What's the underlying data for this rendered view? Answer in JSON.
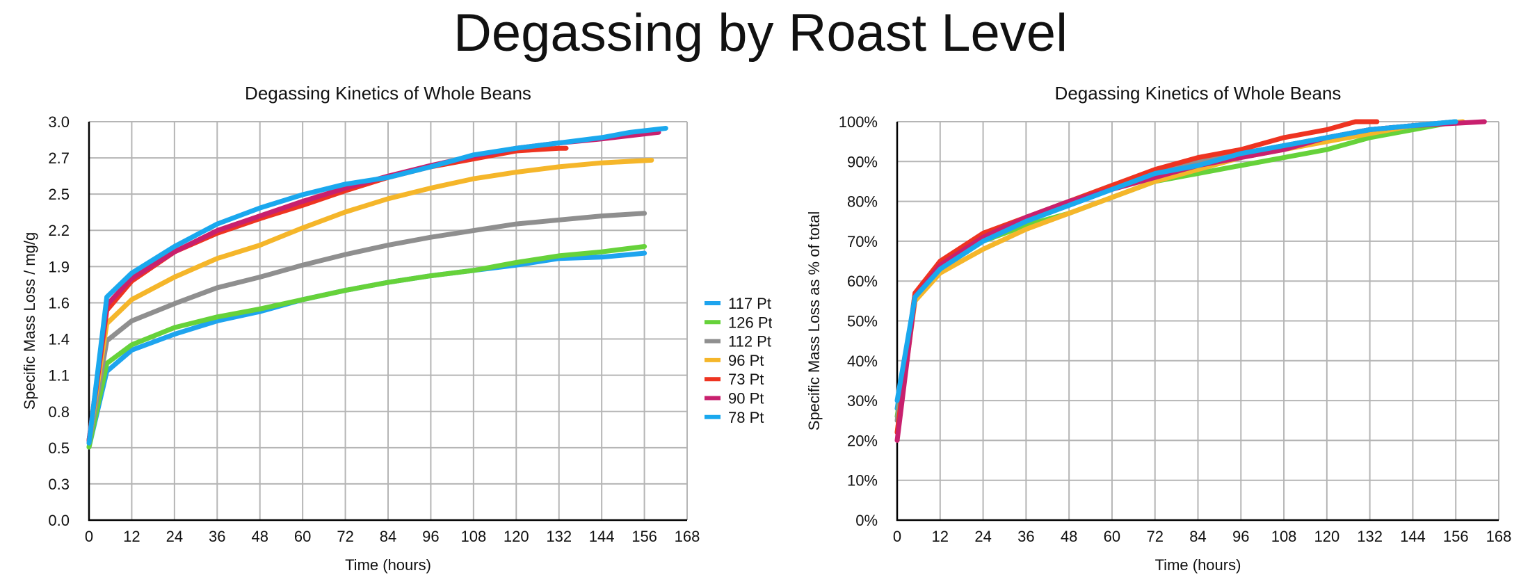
{
  "page": {
    "title": "Degassing by Roast Level"
  },
  "chart_data": [
    {
      "type": "line",
      "title": "Degassing Kinetics of Whole Beans",
      "xlabel": "Time (hours)",
      "ylabel": "Specific Mass Loss / mg/g",
      "xlim": [
        0,
        168
      ],
      "ylim": [
        0,
        3.0
      ],
      "x_ticks": [
        0,
        12,
        24,
        36,
        48,
        60,
        72,
        84,
        96,
        108,
        120,
        132,
        144,
        156,
        168
      ],
      "x_tick_labels": [
        "0",
        "12",
        "24",
        "36",
        "48",
        "60",
        "72",
        "84",
        "96",
        "108",
        "120",
        "132",
        "144",
        "156",
        "168"
      ],
      "y_ticks": [
        0,
        0.273,
        0.545,
        0.818,
        1.091,
        1.364,
        1.636,
        1.909,
        2.182,
        2.455,
        2.727,
        3.0
      ],
      "y_tick_labels": [
        "0.0",
        "0.3",
        "0.5",
        "0.8",
        "1.1",
        "1.4",
        "1.6",
        "1.9",
        "2.2",
        "2.5",
        "2.7",
        "3.0"
      ],
      "legend_position": "right",
      "series": [
        {
          "name": "117 Pt",
          "color": "#1ea4ee",
          "x": [
            0,
            5,
            12,
            24,
            36,
            48,
            60,
            72,
            84,
            96,
            108,
            120,
            132,
            144,
            156
          ],
          "values": [
            0.55,
            1.12,
            1.28,
            1.4,
            1.5,
            1.57,
            1.66,
            1.73,
            1.79,
            1.84,
            1.88,
            1.92,
            1.97,
            1.98,
            2.01
          ]
        },
        {
          "name": "126 Pt",
          "color": "#66d23a",
          "x": [
            0,
            5,
            12,
            24,
            36,
            48,
            60,
            72,
            84,
            96,
            108,
            120,
            132,
            144,
            156
          ],
          "values": [
            0.55,
            1.18,
            1.32,
            1.45,
            1.53,
            1.59,
            1.66,
            1.73,
            1.79,
            1.84,
            1.88,
            1.94,
            1.99,
            2.02,
            2.06
          ]
        },
        {
          "name": "112 Pt",
          "color": "#8f8f8f",
          "x": [
            0,
            5,
            12,
            24,
            36,
            48,
            60,
            72,
            84,
            96,
            108,
            120,
            132,
            144,
            156
          ],
          "values": [
            0.58,
            1.35,
            1.5,
            1.63,
            1.75,
            1.83,
            1.92,
            2.0,
            2.07,
            2.13,
            2.18,
            2.23,
            2.26,
            2.29,
            2.31
          ]
        },
        {
          "name": "96 Pt",
          "color": "#f5b62a",
          "x": [
            0,
            5,
            12,
            24,
            36,
            48,
            60,
            72,
            84,
            96,
            108,
            120,
            132,
            144,
            158
          ],
          "values": [
            0.6,
            1.48,
            1.66,
            1.83,
            1.97,
            2.07,
            2.2,
            2.32,
            2.42,
            2.5,
            2.57,
            2.62,
            2.66,
            2.69,
            2.71
          ]
        },
        {
          "name": "73 Pt",
          "color": "#ee3421",
          "x": [
            0,
            5,
            12,
            24,
            36,
            48,
            60,
            72,
            84,
            96,
            108,
            120,
            132,
            134
          ],
          "values": [
            0.6,
            1.58,
            1.8,
            2.02,
            2.16,
            2.27,
            2.37,
            2.48,
            2.58,
            2.66,
            2.72,
            2.78,
            2.8,
            2.8
          ]
        },
        {
          "name": "90 Pt",
          "color": "#c8206e",
          "x": [
            0,
            5,
            12,
            24,
            36,
            48,
            60,
            72,
            84,
            96,
            108,
            120,
            132,
            144,
            160
          ],
          "values": [
            0.6,
            1.62,
            1.82,
            2.02,
            2.18,
            2.29,
            2.4,
            2.5,
            2.59,
            2.67,
            2.74,
            2.8,
            2.84,
            2.87,
            2.92
          ]
        },
        {
          "name": "78 Pt",
          "color": "#1aa8ee",
          "x": [
            0,
            5,
            12,
            24,
            36,
            48,
            60,
            72,
            84,
            96,
            108,
            120,
            132,
            144,
            152,
            162
          ],
          "values": [
            0.58,
            1.68,
            1.86,
            2.06,
            2.23,
            2.35,
            2.45,
            2.53,
            2.58,
            2.66,
            2.75,
            2.8,
            2.84,
            2.88,
            2.92,
            2.95
          ]
        }
      ]
    },
    {
      "type": "line",
      "title": "Degassing Kinetics of Whole Beans",
      "xlabel": "Time (hours)",
      "ylabel": "Specific Mass Loss as % of total",
      "xlim": [
        0,
        168
      ],
      "ylim": [
        0,
        100
      ],
      "x_ticks": [
        0,
        12,
        24,
        36,
        48,
        60,
        72,
        84,
        96,
        108,
        120,
        132,
        144,
        156,
        168
      ],
      "x_tick_labels": [
        "0",
        "12",
        "24",
        "36",
        "48",
        "60",
        "72",
        "84",
        "96",
        "108",
        "120",
        "132",
        "144",
        "156",
        "168"
      ],
      "y_ticks": [
        0,
        10,
        20,
        30,
        40,
        50,
        60,
        70,
        80,
        90,
        100
      ],
      "y_tick_labels": [
        "0%",
        "10%",
        "20%",
        "30%",
        "40%",
        "50%",
        "60%",
        "70%",
        "80%",
        "90%",
        "100%"
      ],
      "series": [
        {
          "name": "117 Pt",
          "color": "#1ea4ee",
          "x": [
            0,
            5,
            12,
            24,
            36,
            48,
            60,
            72,
            84,
            96,
            108,
            120,
            132,
            144,
            156
          ],
          "values": [
            28,
            56,
            64,
            70,
            75,
            79,
            83,
            87,
            90,
            92,
            94,
            96,
            98,
            99,
            100
          ]
        },
        {
          "name": "126 Pt",
          "color": "#66d23a",
          "x": [
            0,
            5,
            12,
            24,
            36,
            48,
            60,
            72,
            84,
            96,
            108,
            120,
            132,
            144,
            156
          ],
          "values": [
            26,
            56,
            63,
            70,
            74,
            77,
            81,
            85,
            87,
            89,
            91,
            93,
            96,
            98,
            100
          ]
        },
        {
          "name": "112 Pt",
          "color": "#8f8f8f",
          "x": [
            0,
            5,
            12,
            24,
            36,
            48,
            60,
            72,
            84,
            96,
            108,
            120,
            132,
            144,
            156
          ],
          "values": [
            25,
            57,
            64,
            71,
            76,
            80,
            84,
            87,
            90,
            92,
            94,
            96,
            98,
            99,
            100
          ]
        },
        {
          "name": "96 Pt",
          "color": "#f5b62a",
          "x": [
            0,
            5,
            12,
            24,
            36,
            48,
            60,
            72,
            84,
            96,
            108,
            120,
            132,
            144,
            158
          ],
          "values": [
            22,
            55,
            62,
            68,
            73,
            77,
            81,
            85,
            88,
            91,
            93,
            95,
            97,
            99,
            100
          ]
        },
        {
          "name": "73 Pt",
          "color": "#ee3421",
          "x": [
            0,
            5,
            12,
            24,
            36,
            48,
            60,
            72,
            84,
            96,
            108,
            120,
            128,
            134
          ],
          "values": [
            22,
            57,
            65,
            72,
            76,
            80,
            84,
            88,
            91,
            93,
            96,
            98,
            100,
            100
          ]
        },
        {
          "name": "90 Pt",
          "color": "#c8206e",
          "x": [
            0,
            5,
            12,
            24,
            36,
            48,
            60,
            72,
            84,
            96,
            108,
            120,
            132,
            144,
            164
          ],
          "values": [
            20,
            56,
            64,
            71,
            76,
            80,
            83,
            86,
            89,
            91,
            93,
            96,
            98,
            99,
            100
          ]
        },
        {
          "name": "78 Pt",
          "color": "#1aa8ee",
          "x": [
            0,
            5,
            12,
            24,
            36,
            48,
            60,
            72,
            84,
            96,
            108,
            120,
            132,
            144,
            156
          ],
          "values": [
            30,
            56,
            63,
            70,
            75,
            79,
            83,
            87,
            89,
            92,
            94,
            96,
            98,
            99,
            100
          ]
        }
      ]
    }
  ]
}
